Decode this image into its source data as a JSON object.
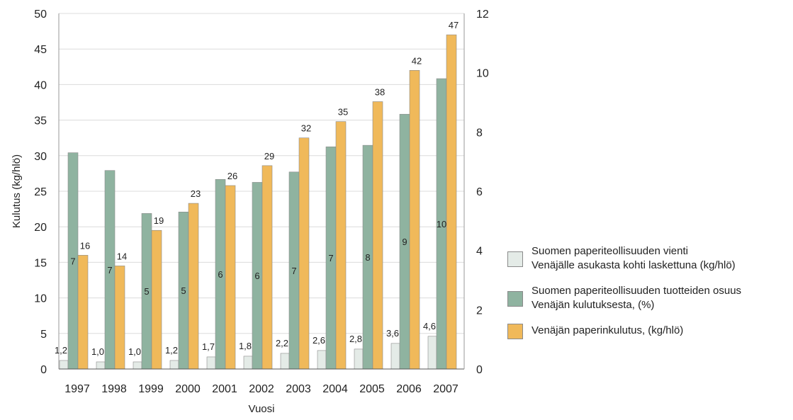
{
  "chart_data": {
    "type": "bar",
    "categories": [
      "1997",
      "1998",
      "1999",
      "2000",
      "2001",
      "2002",
      "2003",
      "2004",
      "2005",
      "2006",
      "2007"
    ],
    "series": [
      {
        "name_lines": [
          "Suomen  paperiteollisuuden vienti",
          "Venäjälle asukasta kohti  laskettuna (kg/hlö)"
        ],
        "axis": "left",
        "color": "#e4ebe7",
        "values": [
          1.2,
          1.0,
          1.0,
          1.2,
          1.7,
          1.8,
          2.2,
          2.6,
          2.8,
          3.6,
          4.6
        ],
        "labels": [
          "1,2",
          "1,0",
          "1,0",
          "1,2",
          "1,7",
          "1,8",
          "2,2",
          "2,6",
          "2,8",
          "3,6",
          "4,6"
        ]
      },
      {
        "name_lines": [
          "Suomen  paperiteollisuuden  tuotteiden osuus",
          "Venäjän kulutuksesta,  (%)"
        ],
        "axis": "right",
        "color": "#8fb3a0",
        "values": [
          7.3,
          6.7,
          5.25,
          5.3,
          6.4,
          6.3,
          6.65,
          7.5,
          7.55,
          8.6,
          9.8
        ],
        "labels": [
          "7",
          "7",
          "5",
          "5",
          "6",
          "6",
          "7",
          "7",
          "8",
          "9",
          "10"
        ]
      },
      {
        "name_lines": [
          "Venäjän paperinkulutus,  (kg/hlö)"
        ],
        "axis": "left",
        "color": "#f0b95a",
        "values": [
          16,
          14.5,
          19.5,
          23.3,
          25.8,
          28.6,
          32.5,
          34.8,
          37.6,
          42,
          47
        ],
        "labels": [
          "16",
          "14",
          "19",
          "23",
          "26",
          "29",
          "32",
          "35",
          "38",
          "42",
          "47"
        ]
      }
    ],
    "xlabel": "Vuosi",
    "ylabel": "Kulutus (kg/hlö)",
    "ylim": [
      0,
      50
    ],
    "y2lim": [
      0,
      12
    ],
    "yticks": [
      "0",
      "5",
      "10",
      "15",
      "20",
      "25",
      "30",
      "35",
      "40",
      "45",
      "50"
    ],
    "y2ticks": [
      "0",
      "2",
      "4",
      "6",
      "8",
      "10",
      "12"
    ],
    "grid": true,
    "legend_position": "right"
  }
}
